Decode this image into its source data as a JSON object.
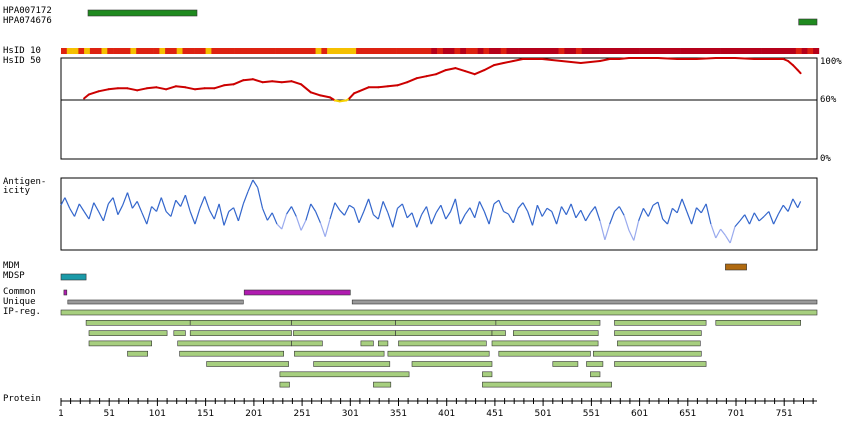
{
  "labels": {
    "antibody_1": "HPA007172",
    "antibody_2": "HPA074676",
    "hsid10": "HsID 10",
    "hsid50": "HsID 50",
    "antigenicity": "Antigen-\nicity",
    "mdm": "MDM",
    "mdsp": "MDSP",
    "common": "Common",
    "unique": "Unique",
    "ipreg": "IP-reg.",
    "protein": "Protein",
    "pct_100": "100%",
    "pct_60": "60%",
    "pct_0": "0%"
  },
  "colors": {
    "antibody": "#1f8a1f",
    "hsid_high": "#b5001a",
    "hsid_mid": "#dd2211",
    "hsid_low": "#f5c000",
    "identity_line": "#cc0000",
    "identity_low": "#f5d000",
    "antigenicity_line": "#3366cc",
    "antigenicity_low": "#99aaee",
    "mdm": "#b06a10",
    "mdsp": "#1a9aa8",
    "common": "#b01cb0",
    "unique": "#999999",
    "ipreg": "#a7cf7f"
  },
  "chart_data": {
    "type": "protein-feature-track",
    "protein_length": 785,
    "x_ticks": [
      1,
      51,
      101,
      151,
      201,
      251,
      301,
      351,
      401,
      451,
      501,
      551,
      601,
      651,
      701,
      751
    ],
    "antibodies": [
      {
        "name": "HPA007172",
        "start": 29,
        "end": 142
      },
      {
        "name": "HPA074676",
        "start": 766,
        "end": 785
      }
    ],
    "identity_track": {
      "ylim": [
        0,
        100
      ],
      "ticks": [
        "100%",
        "60%",
        "0%"
      ],
      "threshold": 60,
      "points": [
        [
          25,
          60
        ],
        [
          30,
          64
        ],
        [
          40,
          67
        ],
        [
          50,
          69
        ],
        [
          60,
          70
        ],
        [
          70,
          70
        ],
        [
          80,
          68
        ],
        [
          90,
          70
        ],
        [
          100,
          71
        ],
        [
          110,
          69
        ],
        [
          120,
          72
        ],
        [
          130,
          71
        ],
        [
          140,
          69
        ],
        [
          150,
          70
        ],
        [
          160,
          70
        ],
        [
          170,
          73
        ],
        [
          180,
          74
        ],
        [
          190,
          78
        ],
        [
          200,
          79
        ],
        [
          210,
          76
        ],
        [
          220,
          77
        ],
        [
          230,
          76
        ],
        [
          240,
          77
        ],
        [
          250,
          74
        ],
        [
          260,
          66
        ],
        [
          270,
          63
        ],
        [
          280,
          61
        ],
        [
          285,
          58
        ],
        [
          290,
          57
        ],
        [
          297,
          58
        ],
        [
          300,
          60
        ],
        [
          305,
          65
        ],
        [
          310,
          67
        ],
        [
          320,
          71
        ],
        [
          330,
          71
        ],
        [
          340,
          72
        ],
        [
          350,
          73
        ],
        [
          360,
          76
        ],
        [
          370,
          80
        ],
        [
          380,
          82
        ],
        [
          390,
          84
        ],
        [
          400,
          88
        ],
        [
          410,
          90
        ],
        [
          420,
          87
        ],
        [
          430,
          84
        ],
        [
          440,
          88
        ],
        [
          450,
          93
        ],
        [
          460,
          95
        ],
        [
          470,
          97
        ],
        [
          480,
          99
        ],
        [
          490,
          99
        ],
        [
          500,
          99
        ],
        [
          510,
          98
        ],
        [
          520,
          97
        ],
        [
          530,
          96
        ],
        [
          540,
          95
        ],
        [
          550,
          96
        ],
        [
          560,
          97
        ],
        [
          570,
          99
        ],
        [
          580,
          99
        ],
        [
          590,
          100
        ],
        [
          600,
          100
        ],
        [
          620,
          100
        ],
        [
          640,
          99
        ],
        [
          660,
          99
        ],
        [
          680,
          100
        ],
        [
          700,
          100
        ],
        [
          720,
          99
        ],
        [
          740,
          99
        ],
        [
          750,
          99
        ],
        [
          755,
          97
        ],
        [
          760,
          93
        ],
        [
          765,
          88
        ],
        [
          768,
          85
        ]
      ]
    },
    "antigenicity": [
      [
        1,
        0.6
      ],
      [
        5,
        0.72
      ],
      [
        10,
        0.55
      ],
      [
        15,
        0.42
      ],
      [
        20,
        0.62
      ],
      [
        25,
        0.5
      ],
      [
        30,
        0.38
      ],
      [
        35,
        0.64
      ],
      [
        40,
        0.5
      ],
      [
        45,
        0.35
      ],
      [
        50,
        0.62
      ],
      [
        55,
        0.72
      ],
      [
        60,
        0.45
      ],
      [
        65,
        0.6
      ],
      [
        70,
        0.8
      ],
      [
        75,
        0.55
      ],
      [
        80,
        0.66
      ],
      [
        85,
        0.48
      ],
      [
        90,
        0.3
      ],
      [
        95,
        0.58
      ],
      [
        100,
        0.5
      ],
      [
        105,
        0.72
      ],
      [
        110,
        0.5
      ],
      [
        115,
        0.42
      ],
      [
        120,
        0.68
      ],
      [
        125,
        0.58
      ],
      [
        130,
        0.76
      ],
      [
        135,
        0.5
      ],
      [
        140,
        0.3
      ],
      [
        145,
        0.55
      ],
      [
        150,
        0.74
      ],
      [
        155,
        0.52
      ],
      [
        160,
        0.38
      ],
      [
        165,
        0.62
      ],
      [
        170,
        0.28
      ],
      [
        175,
        0.5
      ],
      [
        180,
        0.56
      ],
      [
        185,
        0.35
      ],
      [
        190,
        0.62
      ],
      [
        195,
        0.82
      ],
      [
        200,
        1.0
      ],
      [
        205,
        0.88
      ],
      [
        210,
        0.55
      ],
      [
        215,
        0.36
      ],
      [
        220,
        0.48
      ],
      [
        225,
        0.3
      ],
      [
        230,
        0.22
      ],
      [
        235,
        0.46
      ],
      [
        240,
        0.58
      ],
      [
        245,
        0.42
      ],
      [
        250,
        0.2
      ],
      [
        255,
        0.36
      ],
      [
        260,
        0.62
      ],
      [
        265,
        0.5
      ],
      [
        270,
        0.32
      ],
      [
        275,
        0.1
      ],
      [
        280,
        0.38
      ],
      [
        285,
        0.64
      ],
      [
        290,
        0.52
      ],
      [
        295,
        0.44
      ],
      [
        300,
        0.6
      ],
      [
        305,
        0.55
      ],
      [
        310,
        0.32
      ],
      [
        315,
        0.5
      ],
      [
        320,
        0.7
      ],
      [
        325,
        0.45
      ],
      [
        330,
        0.38
      ],
      [
        335,
        0.66
      ],
      [
        340,
        0.48
      ],
      [
        345,
        0.25
      ],
      [
        350,
        0.55
      ],
      [
        355,
        0.62
      ],
      [
        360,
        0.4
      ],
      [
        365,
        0.48
      ],
      [
        370,
        0.25
      ],
      [
        375,
        0.45
      ],
      [
        380,
        0.58
      ],
      [
        385,
        0.3
      ],
      [
        390,
        0.48
      ],
      [
        395,
        0.6
      ],
      [
        400,
        0.38
      ],
      [
        405,
        0.5
      ],
      [
        410,
        0.7
      ],
      [
        415,
        0.3
      ],
      [
        420,
        0.45
      ],
      [
        425,
        0.56
      ],
      [
        430,
        0.4
      ],
      [
        435,
        0.66
      ],
      [
        440,
        0.5
      ],
      [
        445,
        0.3
      ],
      [
        450,
        0.62
      ],
      [
        455,
        0.68
      ],
      [
        460,
        0.5
      ],
      [
        465,
        0.46
      ],
      [
        470,
        0.32
      ],
      [
        475,
        0.55
      ],
      [
        480,
        0.64
      ],
      [
        485,
        0.5
      ],
      [
        490,
        0.28
      ],
      [
        495,
        0.6
      ],
      [
        500,
        0.42
      ],
      [
        505,
        0.55
      ],
      [
        510,
        0.5
      ],
      [
        515,
        0.3
      ],
      [
        520,
        0.58
      ],
      [
        525,
        0.45
      ],
      [
        530,
        0.62
      ],
      [
        535,
        0.4
      ],
      [
        540,
        0.52
      ],
      [
        545,
        0.35
      ],
      [
        550,
        0.48
      ],
      [
        555,
        0.58
      ],
      [
        560,
        0.35
      ],
      [
        565,
        0.05
      ],
      [
        570,
        0.3
      ],
      [
        575,
        0.5
      ],
      [
        580,
        0.58
      ],
      [
        585,
        0.44
      ],
      [
        590,
        0.2
      ],
      [
        595,
        0.04
      ],
      [
        600,
        0.35
      ],
      [
        605,
        0.55
      ],
      [
        610,
        0.42
      ],
      [
        615,
        0.6
      ],
      [
        620,
        0.65
      ],
      [
        625,
        0.38
      ],
      [
        630,
        0.3
      ],
      [
        635,
        0.55
      ],
      [
        640,
        0.48
      ],
      [
        645,
        0.7
      ],
      [
        650,
        0.5
      ],
      [
        655,
        0.3
      ],
      [
        660,
        0.56
      ],
      [
        665,
        0.48
      ],
      [
        670,
        0.62
      ],
      [
        675,
        0.3
      ],
      [
        680,
        0.08
      ],
      [
        685,
        0.22
      ],
      [
        690,
        0.12
      ],
      [
        695,
        0.0
      ],
      [
        700,
        0.26
      ],
      [
        705,
        0.35
      ],
      [
        710,
        0.45
      ],
      [
        715,
        0.3
      ],
      [
        720,
        0.48
      ],
      [
        725,
        0.35
      ],
      [
        730,
        0.42
      ],
      [
        735,
        0.5
      ],
      [
        740,
        0.3
      ],
      [
        745,
        0.46
      ],
      [
        750,
        0.6
      ],
      [
        755,
        0.5
      ],
      [
        760,
        0.7
      ],
      [
        765,
        0.56
      ],
      [
        768,
        0.66
      ]
    ],
    "features": {
      "MDM": [
        [
          690,
          712
        ]
      ],
      "MDSP": [
        [
          1,
          27
        ]
      ],
      "Common": [
        [
          4,
          7
        ],
        [
          191,
          301
        ]
      ],
      "Unique": [
        [
          8,
          190
        ],
        [
          303,
          785
        ]
      ]
    },
    "ip_regions": [
      [
        [
          1,
          785
        ]
      ],
      [
        [
          27,
          135
        ],
        [
          135,
          240
        ],
        [
          240,
          348
        ],
        [
          348,
          452
        ],
        [
          452,
          560
        ],
        [
          575,
          670
        ],
        [
          680,
          768
        ]
      ],
      [
        [
          30,
          111
        ],
        [
          118,
          130
        ],
        [
          135,
          240
        ],
        [
          242,
          348
        ],
        [
          348,
          448
        ],
        [
          448,
          462
        ],
        [
          470,
          558
        ],
        [
          575,
          665
        ]
      ],
      [
        [
          30,
          95
        ],
        [
          122,
          240
        ],
        [
          240,
          272
        ],
        [
          312,
          325
        ],
        [
          330,
          340
        ],
        [
          351,
          442
        ],
        [
          448,
          558
        ],
        [
          578,
          664
        ]
      ],
      [
        [
          70,
          91
        ],
        [
          124,
          232
        ],
        [
          243,
          336
        ],
        [
          340,
          445
        ],
        [
          455,
          550
        ],
        [
          553,
          665
        ]
      ],
      [
        [
          152,
          237
        ],
        [
          263,
          342
        ],
        [
          365,
          448
        ],
        [
          511,
          537
        ],
        [
          546,
          563
        ],
        [
          575,
          670
        ]
      ],
      [
        [
          228,
          362
        ],
        [
          438,
          448
        ],
        [
          550,
          560
        ]
      ],
      [
        [
          228,
          238
        ],
        [
          325,
          343
        ],
        [
          438,
          572
        ]
      ]
    ]
  }
}
